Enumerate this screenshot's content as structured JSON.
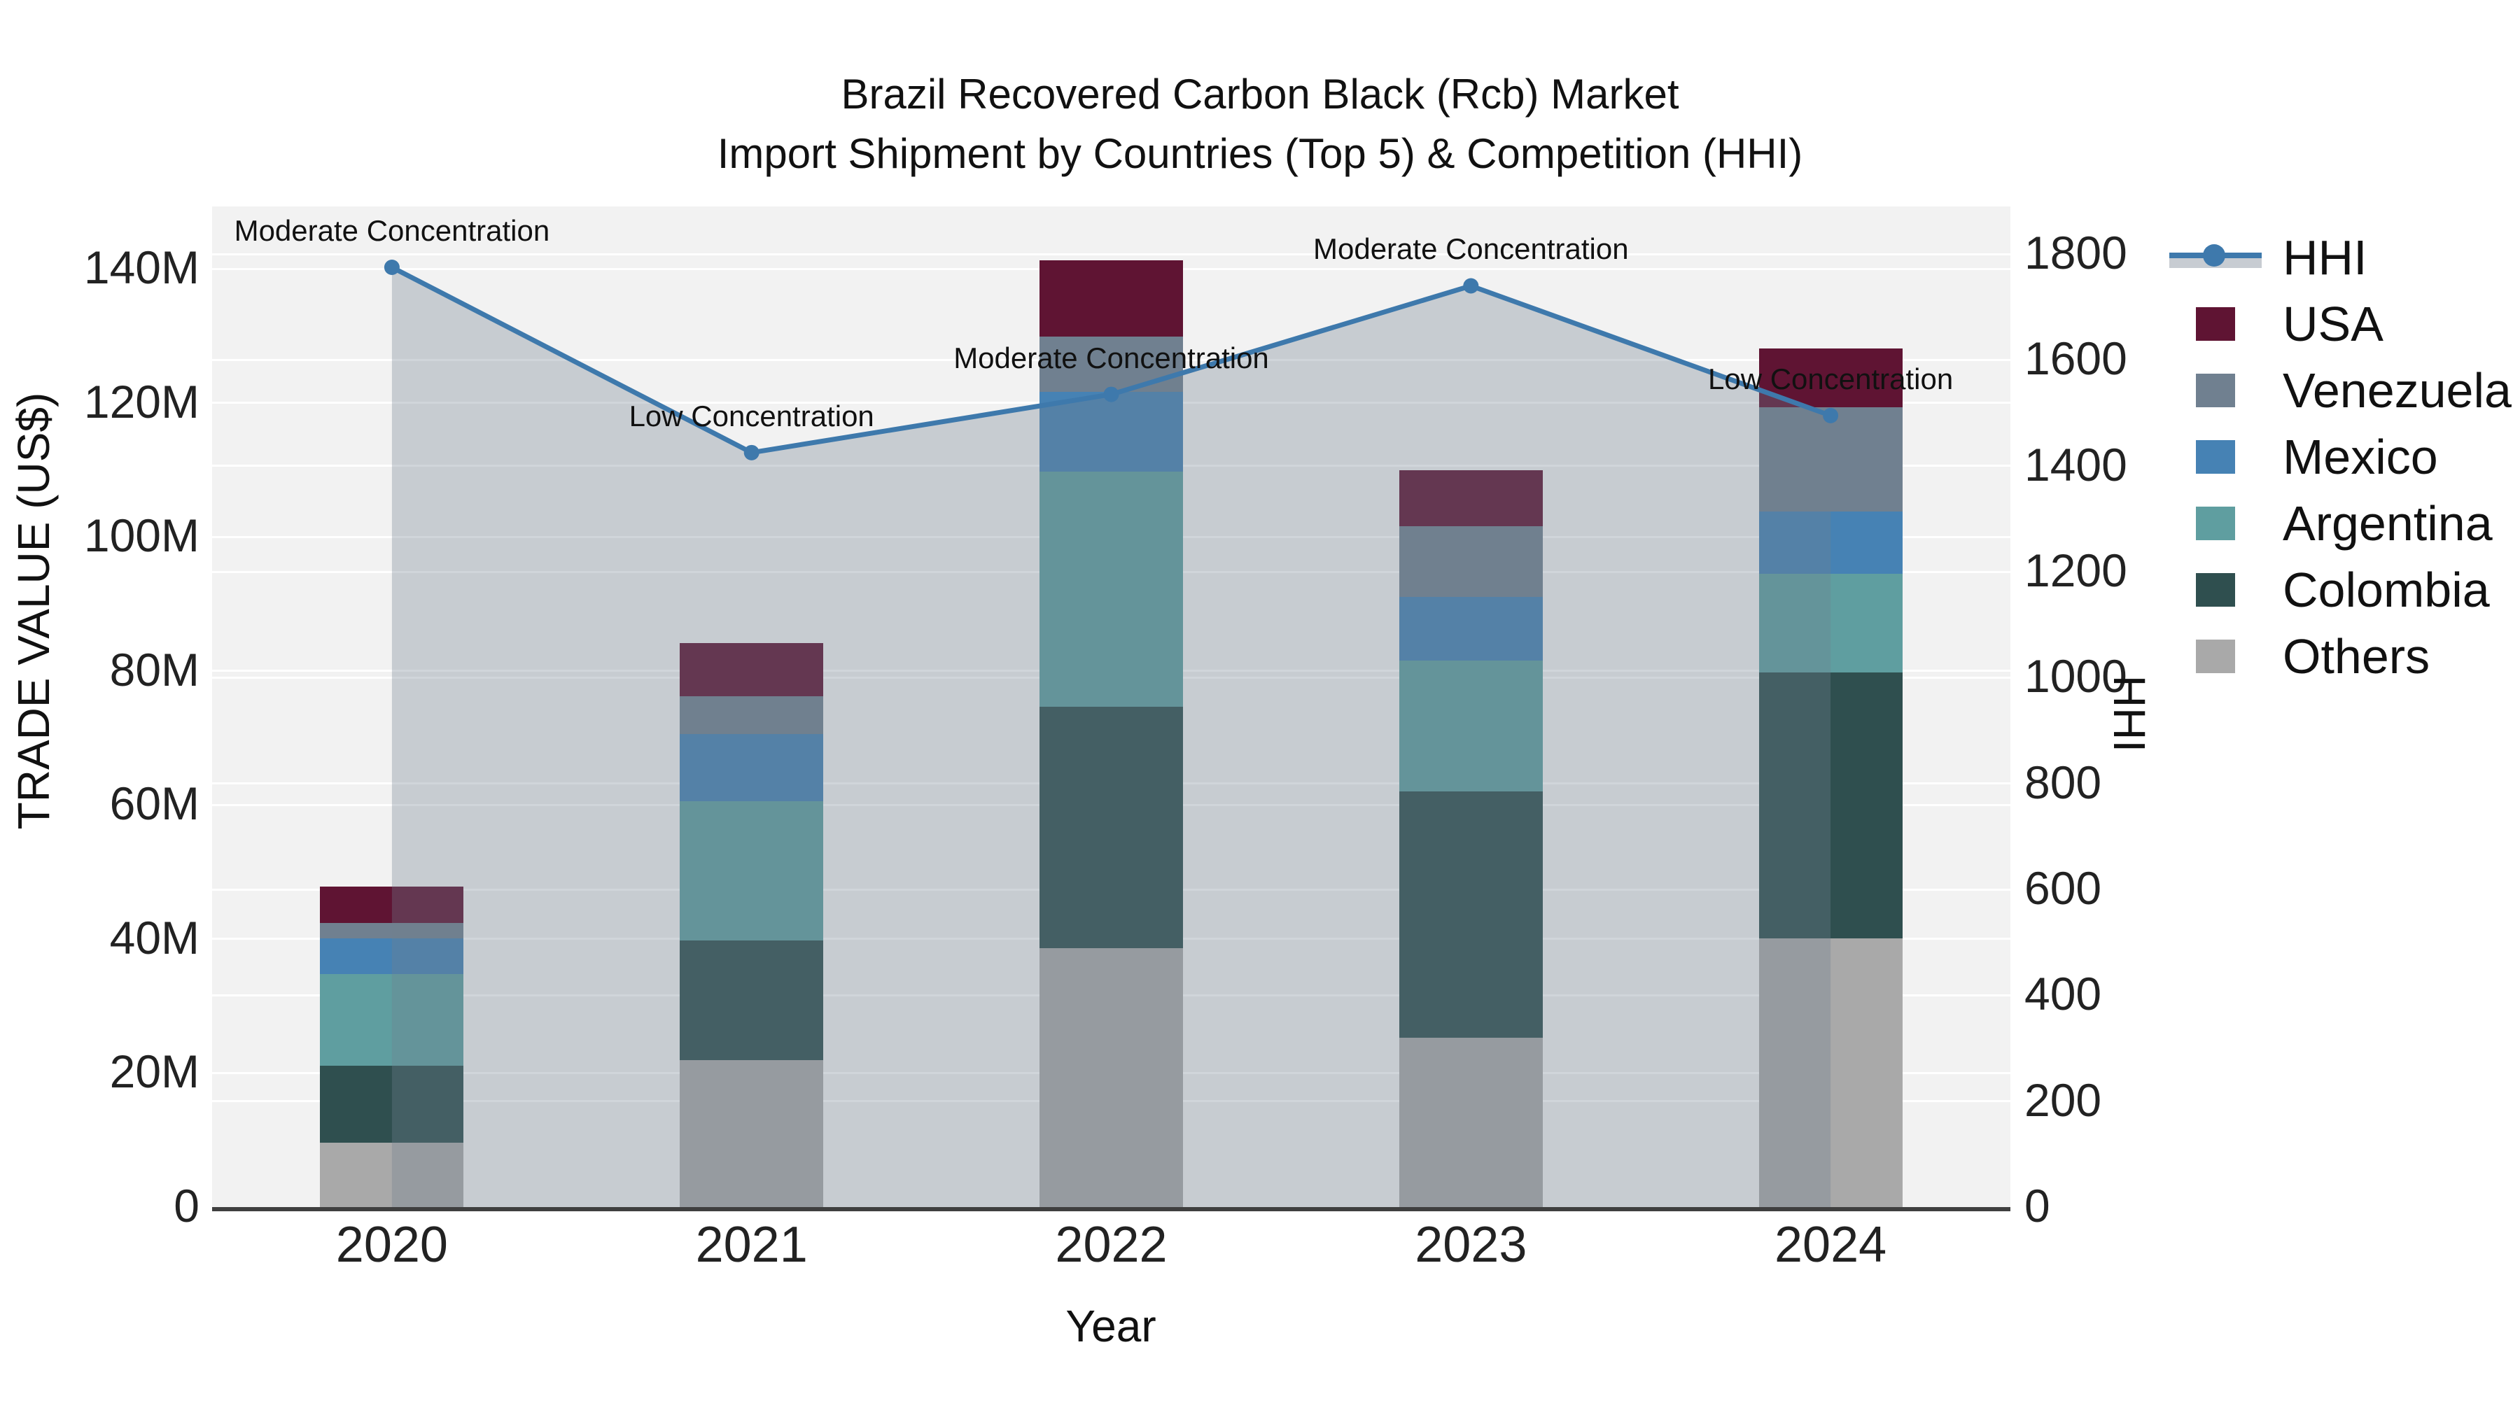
{
  "title": {
    "line1": "Brazil Recovered Carbon Black (Rcb) Market",
    "line2": "Import Shipment by Countries (Top 5) & Competition (HHI)"
  },
  "axes": {
    "y_left": {
      "title": "TRADE VALUE (US$)"
    },
    "y_right": {
      "title": "HHI"
    },
    "x": {
      "title": "Year"
    }
  },
  "colors": {
    "usa": "#5F1433",
    "venezuela": "#708090",
    "mexico": "#4682B4",
    "argentina": "#5F9EA0",
    "colombia": "#2F4F4F",
    "others": "#A9A9A9",
    "hhi_line": "#3E79AC",
    "hhi_fill": "rgba(112,128,144,0.33)",
    "plot_bg": "#F2F2F2",
    "grid": "#FFFFFF",
    "axis_line": "#3F3F3F"
  },
  "legend": [
    {
      "key": "hhi",
      "label": "HHI",
      "type": "line",
      "color": "#3E79AC"
    },
    {
      "key": "usa",
      "label": "USA",
      "type": "square",
      "color": "#5F1433"
    },
    {
      "key": "venezuela",
      "label": "Venezuela",
      "type": "square",
      "color": "#708090"
    },
    {
      "key": "mexico",
      "label": "Mexico",
      "type": "square",
      "color": "#4682B4"
    },
    {
      "key": "argentina",
      "label": "Argentina",
      "type": "square",
      "color": "#5F9EA0"
    },
    {
      "key": "colombia",
      "label": "Colombia",
      "type": "square",
      "color": "#2F4F4F"
    },
    {
      "key": "others",
      "label": "Others",
      "type": "square",
      "color": "#A9A9A9"
    }
  ],
  "chart_data": {
    "type": "bar+line",
    "x": [
      "2020",
      "2021",
      "2022",
      "2023",
      "2024"
    ],
    "bar_unit": "M US$",
    "bar_stack_order_bottom_to_top": [
      "Others",
      "Colombia",
      "Argentina",
      "Mexico",
      "Venezuela",
      "USA"
    ],
    "bar_series": [
      {
        "name": "Others",
        "color_key": "others",
        "values": [
          9.6,
          21.9,
          38.6,
          25.3,
          40.1
        ]
      },
      {
        "name": "Colombia",
        "color_key": "colombia",
        "values": [
          11.5,
          17.9,
          36.1,
          36.7,
          39.7
        ]
      },
      {
        "name": "Argentina",
        "color_key": "argentina",
        "values": [
          13.7,
          20.8,
          35.0,
          19.5,
          14.7
        ]
      },
      {
        "name": "Mexico",
        "color_key": "mexico",
        "values": [
          5.3,
          10.0,
          11.9,
          9.5,
          9.3
        ]
      },
      {
        "name": "Venezuela",
        "color_key": "venezuela",
        "values": [
          2.3,
          5.6,
          8.3,
          10.6,
          15.5
        ]
      },
      {
        "name": "USA",
        "color_key": "usa",
        "values": [
          5.4,
          7.9,
          11.4,
          8.3,
          8.8
        ]
      }
    ],
    "bar_totals": [
      47.8,
      84.1,
      141.3,
      109.9,
      128.1
    ],
    "line_series": {
      "name": "HHI",
      "axis": "right",
      "values": [
        1775,
        1425,
        1535,
        1740,
        1495
      ],
      "area_fill": true
    },
    "annotations": [
      "Moderate Concentration",
      "Low Concentration",
      "Moderate Concentration",
      "Moderate Concentration",
      "Low Concentration"
    ],
    "yticks_left": [
      {
        "v": 0,
        "label": "0"
      },
      {
        "v": 20,
        "label": "20M"
      },
      {
        "v": 40,
        "label": "40M"
      },
      {
        "v": 60,
        "label": "60M"
      },
      {
        "v": 80,
        "label": "80M"
      },
      {
        "v": 100,
        "label": "100M"
      },
      {
        "v": 120,
        "label": "120M"
      },
      {
        "v": 140,
        "label": "140M"
      }
    ],
    "yticks_right": [
      {
        "v": 0,
        "label": "0"
      },
      {
        "v": 200,
        "label": "200"
      },
      {
        "v": 400,
        "label": "400"
      },
      {
        "v": 600,
        "label": "600"
      },
      {
        "v": 800,
        "label": "800"
      },
      {
        "v": 1000,
        "label": "1000"
      },
      {
        "v": 1200,
        "label": "1200"
      },
      {
        "v": 1400,
        "label": "1400"
      },
      {
        "v": 1600,
        "label": "1600"
      },
      {
        "v": 1800,
        "label": "1800"
      }
    ],
    "ylim_left": [
      0,
      149.3
    ],
    "ylim_right": [
      0,
      1890
    ],
    "grid": true,
    "legend_position": "right"
  }
}
